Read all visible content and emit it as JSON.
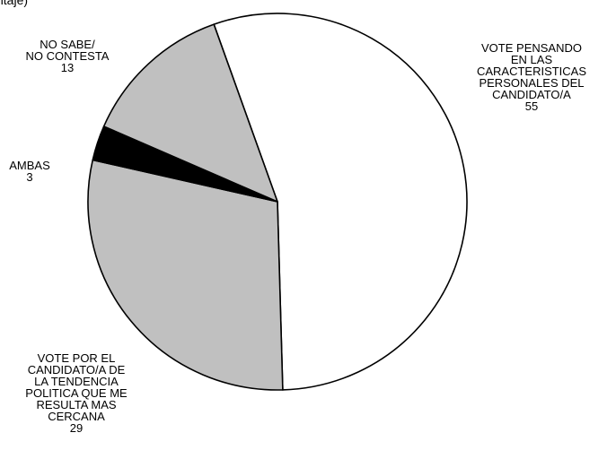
{
  "title_fragment": "ntaje)",
  "chart_data": {
    "type": "pie",
    "slices": [
      {
        "label_lines": [
          "VOTE PENSANDO",
          "EN LAS",
          "CARACTERISTICAS",
          "PERSONALES DEL",
          "CANDIDATO/A"
        ],
        "value": 55,
        "value_text": "55",
        "color": "#ffffff"
      },
      {
        "label_lines": [
          "VOTE POR EL",
          "CANDIDATO/A DE",
          "LA TENDENCIA",
          "POLITICA QUE ME",
          "RESULTA MAS",
          "CERCANA"
        ],
        "value": 29,
        "value_text": "29",
        "color": "#c0c0c0"
      },
      {
        "label_lines": [
          "AMBAS"
        ],
        "value": 3,
        "value_text": "3",
        "color": "#000000"
      },
      {
        "label_lines": [
          "NO SABE/",
          "NO CONTESTA"
        ],
        "value": 13,
        "value_text": "13",
        "color": "#c0c0c0"
      }
    ]
  }
}
